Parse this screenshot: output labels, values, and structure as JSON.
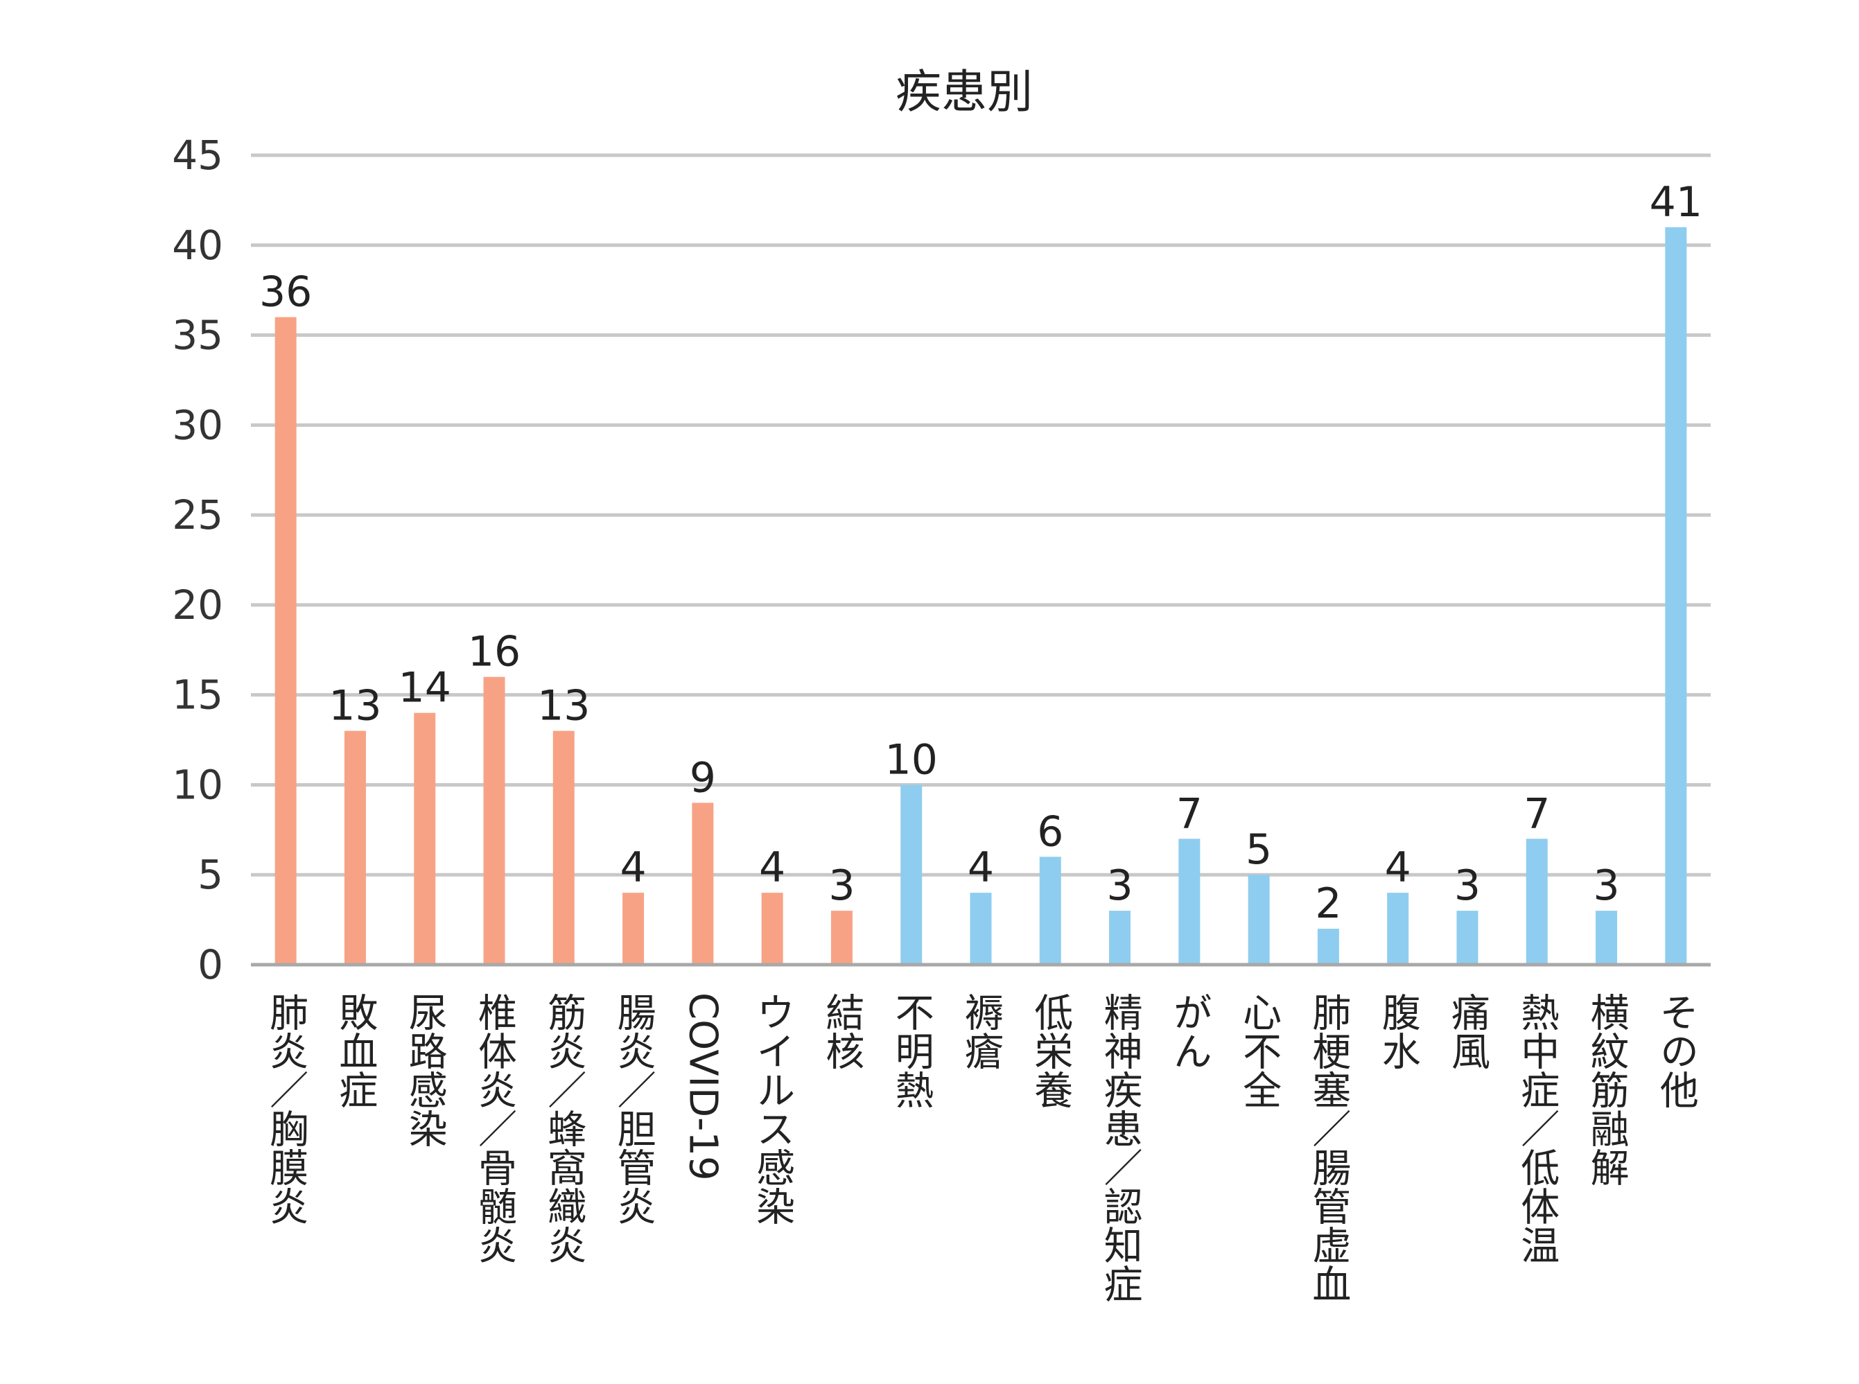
{
  "chart_data": {
    "type": "bar",
    "title": "疾患別",
    "xlabel": "",
    "ylabel": "",
    "ylim": [
      0,
      45
    ],
    "yticks": [
      0,
      5,
      10,
      15,
      20,
      25,
      30,
      35,
      40,
      45
    ],
    "grid": true,
    "legend": "none",
    "colors": {
      "group1": "#F8A285",
      "group2": "#8ECDEF"
    },
    "categories": [
      "肺炎／胸膜炎",
      "敗血症",
      "尿路感染",
      "椎体炎／骨髄炎",
      "筋炎／蜂窩織炎",
      "腸炎／胆管炎",
      "COVID-19",
      "ウイルス感染",
      "結核",
      "不明熱",
      "褥瘡",
      "低栄養",
      "精神疾患／認知症",
      "がん",
      "心不全",
      "肺梗塞／腸管虚血",
      "腹水",
      "痛風",
      "熱中症／低体温",
      "横紋筋融解",
      "その他"
    ],
    "values": [
      36,
      13,
      14,
      16,
      13,
      4,
      9,
      4,
      3,
      10,
      4,
      6,
      3,
      7,
      5,
      2,
      4,
      3,
      7,
      3,
      41
    ],
    "bar_color_groups": [
      "group1",
      "group1",
      "group1",
      "group1",
      "group1",
      "group1",
      "group1",
      "group1",
      "group1",
      "group2",
      "group2",
      "group2",
      "group2",
      "group2",
      "group2",
      "group2",
      "group2",
      "group2",
      "group2",
      "group2",
      "group2"
    ]
  }
}
